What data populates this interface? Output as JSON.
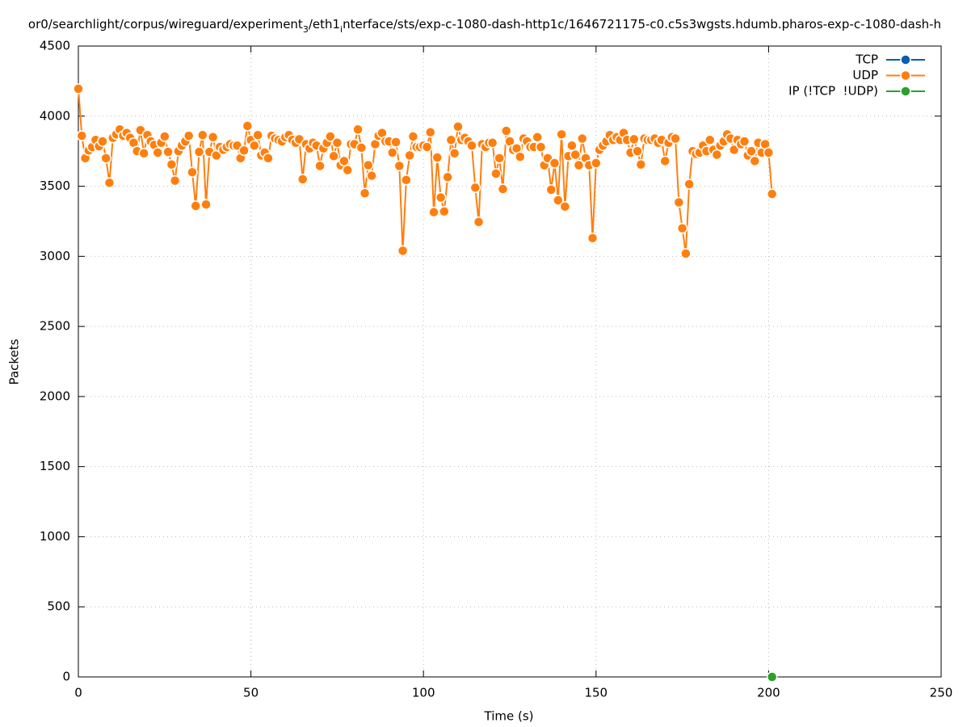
{
  "chart_data": {
    "type": "line",
    "title": [
      "or0/searchlight/corpus/wireguard/experiment",
      "3",
      "/eth1",
      "i",
      "nterface/sts/exp-c-1080-dash-http1c/1646721175-c0.c5s3wgsts.hdumb.pharos-exp-c-1080-dash-h"
    ],
    "x_label": "Time (s)",
    "y_label": "Packets",
    "xlim": [
      0,
      250
    ],
    "xticks": [
      0,
      50,
      100,
      150,
      200,
      250
    ],
    "ylim": [
      0,
      4500
    ],
    "yticks": [
      0,
      500,
      1000,
      1500,
      2000,
      2500,
      3000,
      3500,
      4000,
      4500
    ],
    "grid": true,
    "legend": "top-right",
    "series": [
      {
        "name": "TCP",
        "color": "#0060ad",
        "x": [],
        "values": []
      },
      {
        "name": "UDP",
        "color": "#ff7f0e",
        "x": [
          0,
          1,
          2,
          3,
          4,
          5,
          6,
          7,
          8,
          9,
          10,
          11,
          12,
          13,
          14,
          15,
          16,
          17,
          18,
          19,
          20,
          21,
          22,
          23,
          24,
          25,
          26,
          27,
          28,
          29,
          30,
          31,
          32,
          33,
          34,
          35,
          36,
          37,
          38,
          39,
          40,
          41,
          42,
          43,
          44,
          45,
          46,
          47,
          48,
          49,
          50,
          51,
          52,
          53,
          54,
          55,
          56,
          57,
          58,
          59,
          60,
          61,
          62,
          63,
          64,
          65,
          66,
          67,
          68,
          69,
          70,
          71,
          72,
          73,
          74,
          75,
          76,
          77,
          78,
          79,
          80,
          81,
          82,
          83,
          84,
          85,
          86,
          87,
          88,
          89,
          90,
          91,
          92,
          93,
          94,
          95,
          96,
          97,
          98,
          99,
          100,
          101,
          102,
          103,
          104,
          105,
          106,
          107,
          108,
          109,
          110,
          111,
          112,
          113,
          114,
          115,
          116,
          117,
          118,
          119,
          120,
          121,
          122,
          123,
          124,
          125,
          126,
          127,
          128,
          129,
          130,
          131,
          132,
          133,
          134,
          135,
          136,
          137,
          138,
          139,
          140,
          141,
          142,
          143,
          144,
          145,
          146,
          147,
          148,
          149,
          150,
          151,
          152,
          153,
          154,
          155,
          156,
          157,
          158,
          159,
          160,
          161,
          162,
          163,
          164,
          165,
          166,
          167,
          168,
          169,
          170,
          171,
          172,
          173,
          174,
          175,
          176,
          177,
          178,
          179,
          180,
          181,
          182,
          183,
          184,
          185,
          186,
          187,
          188,
          189,
          190,
          191,
          192,
          193,
          194,
          195,
          196,
          197,
          198,
          199,
          200,
          201
        ],
        "values": [
          4195,
          3860,
          3700,
          3755,
          3780,
          3830,
          3785,
          3820,
          3700,
          3525,
          3845,
          3870,
          3905,
          3860,
          3880,
          3845,
          3810,
          3750,
          3900,
          3735,
          3865,
          3820,
          3795,
          3740,
          3810,
          3855,
          3745,
          3655,
          3540,
          3750,
          3790,
          3820,
          3860,
          3600,
          3360,
          3745,
          3865,
          3370,
          3745,
          3850,
          3720,
          3780,
          3760,
          3780,
          3800,
          3790,
          3790,
          3700,
          3755,
          3930,
          3830,
          3790,
          3865,
          3720,
          3740,
          3700,
          3860,
          3840,
          3830,
          3820,
          3850,
          3865,
          3830,
          3810,
          3835,
          3550,
          3800,
          3770,
          3810,
          3790,
          3645,
          3770,
          3810,
          3855,
          3715,
          3810,
          3650,
          3680,
          3615,
          3800,
          3800,
          3905,
          3775,
          3450,
          3650,
          3575,
          3800,
          3860,
          3880,
          3820,
          3820,
          3740,
          3815,
          3645,
          3040,
          3545,
          3720,
          3855,
          3780,
          3780,
          3790,
          3780,
          3885,
          3315,
          3705,
          3420,
          3320,
          3565,
          3830,
          3735,
          3925,
          3830,
          3845,
          3820,
          3790,
          3490,
          3245,
          3800,
          3780,
          3810,
          3810,
          3590,
          3700,
          3480,
          3895,
          3820,
          3760,
          3770,
          3710,
          3840,
          3820,
          3780,
          3780,
          3850,
          3780,
          3650,
          3700,
          3475,
          3665,
          3400,
          3870,
          3355,
          3715,
          3790,
          3725,
          3650,
          3840,
          3700,
          3650,
          3130,
          3665,
          3760,
          3790,
          3820,
          3865,
          3830,
          3850,
          3830,
          3880,
          3830,
          3740,
          3835,
          3750,
          3655,
          3840,
          3830,
          3830,
          3840,
          3810,
          3830,
          3680,
          3810,
          3850,
          3840,
          3385,
          3200,
          3020,
          3515,
          3750,
          3730,
          3740,
          3790,
          3750,
          3830,
          3760,
          3725,
          3790,
          3820,
          3870,
          3840,
          3760,
          3830,
          3800,
          3820,
          3720,
          3750,
          3680,
          3810,
          3740,
          3800,
          3740,
          3445
        ]
      },
      {
        "name": "IP (!TCP  !UDP)",
        "color": "#2ca02c",
        "x": [
          201
        ],
        "values": [
          0
        ]
      }
    ]
  }
}
